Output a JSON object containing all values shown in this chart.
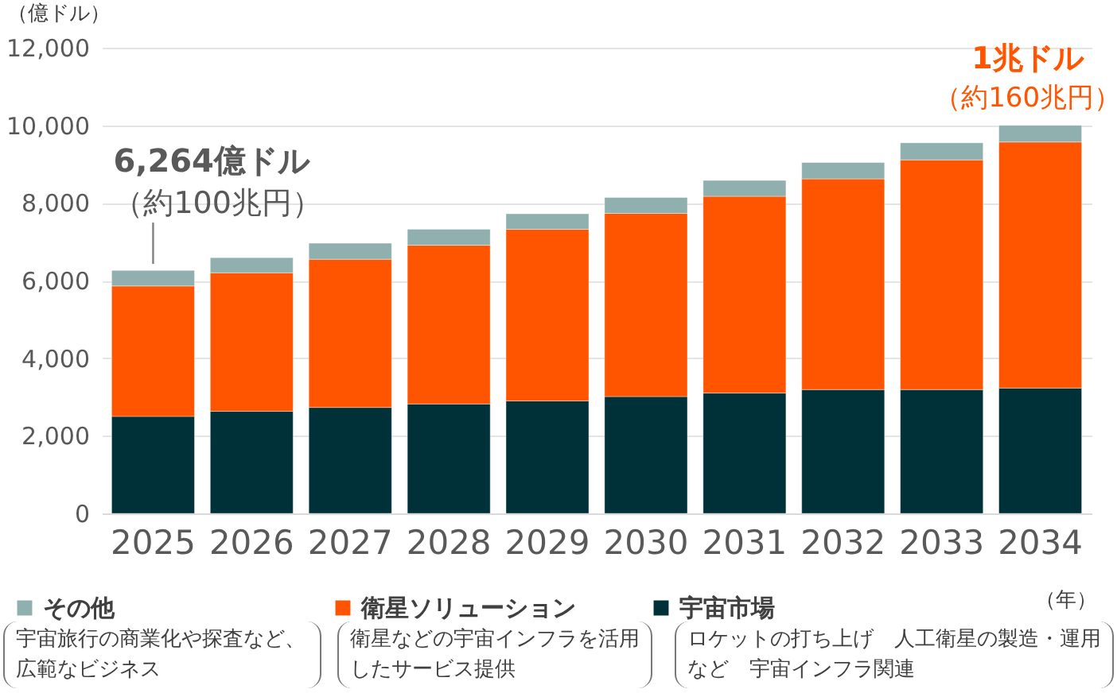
{
  "chart_data": {
    "type": "bar",
    "stacked": true,
    "ylabel": "（億ドル）",
    "xlabel": "（年）",
    "categories": [
      "2025",
      "2026",
      "2027",
      "2028",
      "2029",
      "2030",
      "2031",
      "2032",
      "2033",
      "2034"
    ],
    "series": [
      {
        "name": "宇宙市場",
        "color": "#003038",
        "values": [
          2500,
          2630,
          2730,
          2820,
          2900,
          3010,
          3100,
          3190,
          3190,
          3230
        ]
      },
      {
        "name": "衛星ソリューション",
        "color": "#ff5500",
        "values": [
          3360,
          3570,
          3820,
          4090,
          4420,
          4720,
          5070,
          5430,
          5920,
          6340
        ]
      },
      {
        "name": "その他",
        "color": "#8fb0ae",
        "values": [
          400,
          390,
          410,
          410,
          400,
          410,
          410,
          420,
          440,
          430
        ]
      }
    ],
    "ylim": [
      0,
      12000
    ],
    "yticks": [
      0,
      {
        "value": 2000,
        "label": "2,000"
      },
      {
        "value": 4000,
        "label": "4,000"
      },
      {
        "value": 6000,
        "label": "6,000"
      },
      {
        "value": 8000,
        "label": "8,000"
      },
      {
        "value": 10000,
        "label": "10,000"
      },
      {
        "value": 12000,
        "label": "12,000"
      }
    ],
    "grid": "y",
    "legend": "bottom",
    "annotations": [
      {
        "text": "6,264億ドル",
        "x": "2025",
        "y": 6264
      },
      {
        "text": "（約100兆円）",
        "x": "2025",
        "y": 6264
      },
      {
        "text": "1兆ドル",
        "x": "2034",
        "y": 10000
      },
      {
        "text": "（約160兆円）",
        "x": "2034",
        "y": 10000
      },
      "宇宙旅行の商業化や探査など、広範なビジネス",
      "衛星などの宇宙インフラを活用したサービス提供",
      "ロケットの打ち上げ　人工衛星の製造・運用など　宇宙インフラ関連"
    ]
  }
}
